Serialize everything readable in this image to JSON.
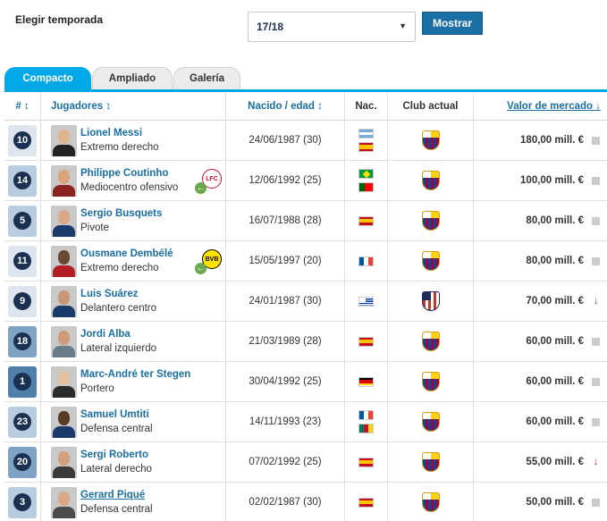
{
  "season": {
    "label": "Elegir temporada",
    "selected": "17/18",
    "button": "Mostrar"
  },
  "tabs": [
    "Compacto",
    "Ampliado",
    "Galería"
  ],
  "headers": {
    "num": "# ↕",
    "player": "Jugadores ↕",
    "born": "Nacido / edad ↕",
    "nat": "Nac.",
    "club": "Club actual",
    "value": "Valor de mercado ↓"
  },
  "rows": [
    {
      "num": "10",
      "name": "Lionel Messi",
      "position": "Extremo derecho",
      "born": "24/06/1987 (30)",
      "flags": [
        "argentina",
        "spain"
      ],
      "club": "barcelona",
      "value": "180,00 mill. €",
      "trend": "flat",
      "numbg": "#dde6ef",
      "loan": null
    },
    {
      "num": "14",
      "name": "Philippe Coutinho",
      "position": "Mediocentro ofensivo",
      "born": "12/06/1992 (25)",
      "flags": [
        "brazil",
        "portugal"
      ],
      "club": "barcelona",
      "value": "100,00 mill. €",
      "trend": "flat",
      "numbg": "#b9cde0",
      "loan": "liverpool"
    },
    {
      "num": "5",
      "name": "Sergio Busquets",
      "position": "Pivote",
      "born": "16/07/1988 (28)",
      "flags": [
        "spain"
      ],
      "club": "barcelona",
      "value": "80,00 mill. €",
      "trend": "flat",
      "numbg": "#b9cde0",
      "loan": null
    },
    {
      "num": "11",
      "name": "Ousmane Dembélé",
      "position": "Extremo derecho",
      "born": "15/05/1997 (20)",
      "flags": [
        "france"
      ],
      "club": "barcelona",
      "value": "80,00 mill. €",
      "trend": "flat",
      "numbg": "#dde6ef",
      "loan": "dortmund"
    },
    {
      "num": "9",
      "name": "Luis Suárez",
      "position": "Delantero centro",
      "born": "24/01/1987 (30)",
      "flags": [
        "uruguay"
      ],
      "club": "atletico",
      "value": "70,00 mill. €",
      "trend": "down",
      "numbg": "#dde6ef",
      "loan": null
    },
    {
      "num": "18",
      "name": "Jordi Alba",
      "position": "Lateral izquierdo",
      "born": "21/03/1989 (28)",
      "flags": [
        "spain"
      ],
      "club": "barcelona",
      "value": "60,00 mill. €",
      "trend": "flat",
      "numbg": "#7ea3c4",
      "loan": null
    },
    {
      "num": "1",
      "name": "Marc-André ter Stegen",
      "position": "Portero",
      "born": "30/04/1992 (25)",
      "flags": [
        "germany"
      ],
      "club": "barcelona",
      "value": "60,00 mill. €",
      "trend": "flat",
      "numbg": "#4f7fab",
      "loan": null
    },
    {
      "num": "23",
      "name": "Samuel Umtiti",
      "position": "Defensa central",
      "born": "14/11/1993 (23)",
      "flags": [
        "france",
        "cameroon"
      ],
      "club": "barcelona",
      "value": "60,00 mill. €",
      "trend": "flat",
      "numbg": "#b9cde0",
      "loan": null
    },
    {
      "num": "20",
      "name": "Sergi Roberto",
      "position": "Lateral derecho",
      "born": "07/02/1992 (25)",
      "flags": [
        "spain"
      ],
      "club": "barcelona",
      "value": "55,00 mill. €",
      "trend": "down",
      "numbg": "#7ea3c4",
      "loan": null
    },
    {
      "num": "3",
      "name": "Gerard Piqué",
      "position": "Defensa central",
      "born": "02/02/1987 (30)",
      "flags": [
        "spain"
      ],
      "club": "barcelona",
      "value": "50,00 mill. €",
      "trend": "flat",
      "numbg": "#b9cde0",
      "loan": null
    }
  ],
  "colors": {
    "accent": "#00a8e8",
    "link": "#1a6fa5",
    "navy": "#1a3151",
    "down": "#b21e23"
  }
}
